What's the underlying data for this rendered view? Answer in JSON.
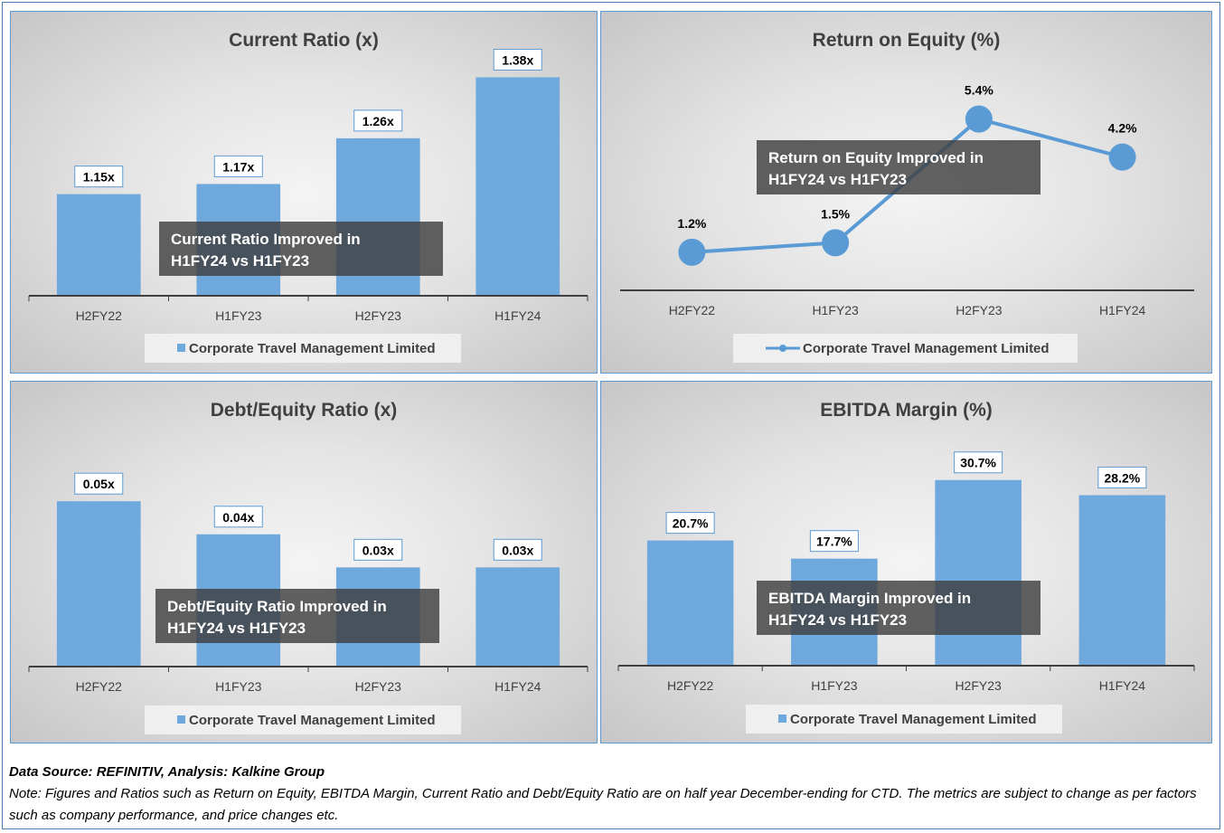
{
  "colors": {
    "bar": "#6fa8dc",
    "line": "#5b9bd5",
    "annotation_bg": "#404040",
    "axis": "#404040"
  },
  "chart_data": [
    {
      "type": "bar",
      "title": "Current Ratio (x)",
      "categories": [
        "H2FY22",
        "H1FY23",
        "H2FY23",
        "H1FY24"
      ],
      "series": [
        {
          "name": "Corporate Travel Management Limited",
          "values": [
            1.15,
            1.17,
            1.26,
            1.38
          ]
        }
      ],
      "data_labels": [
        "1.15x",
        "1.17x",
        "1.26x",
        "1.38x"
      ],
      "ylim": [
        0.95,
        1.42
      ],
      "grid": false,
      "legend": "bottom",
      "annotation": [
        "Current Ratio Improved in",
        "H1FY24 vs H1FY23"
      ]
    },
    {
      "type": "line",
      "title": "Return on Equity (%)",
      "categories": [
        "H2FY22",
        "H1FY23",
        "H2FY23",
        "H1FY24"
      ],
      "series": [
        {
          "name": "Corporate Travel Management Limited",
          "values": [
            1.2,
            1.5,
            5.4,
            4.2
          ]
        }
      ],
      "data_labels": [
        "1.2%",
        "1.5%",
        "5.4%",
        "4.2%"
      ],
      "ylim": [
        0.0,
        6.5
      ],
      "grid": false,
      "legend": "bottom",
      "annotation": [
        "Return on Equity Improved in",
        "H1FY24 vs H1FY23"
      ]
    },
    {
      "type": "bar",
      "title": "Debt/Equity Ratio (x)",
      "categories": [
        "H2FY22",
        "H1FY23",
        "H2FY23",
        "H1FY24"
      ],
      "series": [
        {
          "name": "Corporate Travel Management Limited",
          "values": [
            0.05,
            0.04,
            0.03,
            0.03
          ]
        }
      ],
      "data_labels": [
        "0.05x",
        "0.04x",
        "0.03x",
        "0.03x"
      ],
      "ylim": [
        0.0,
        0.061
      ],
      "grid": false,
      "legend": "bottom",
      "annotation": [
        "Debt/Equity Ratio Improved in",
        "H1FY24 vs H1FY23"
      ]
    },
    {
      "type": "bar",
      "title": "EBITDA Margin (%)",
      "categories": [
        "H2FY22",
        "H1FY23",
        "H2FY23",
        "H1FY24"
      ],
      "series": [
        {
          "name": "Corporate Travel Management Limited",
          "values": [
            20.7,
            17.7,
            30.7,
            28.2
          ]
        }
      ],
      "data_labels": [
        "20.7%",
        "17.7%",
        "30.7%",
        "28.2%"
      ],
      "ylim": [
        0.0,
        35.0
      ],
      "grid": false,
      "legend": "bottom",
      "annotation": [
        "EBITDA Margin Improved in",
        "H1FY24 vs H1FY23"
      ]
    }
  ],
  "footer": {
    "source": "Data Source: REFINITIV, Analysis: Kalkine Group",
    "note": "Note: Figures and Ratios such as Return on Equity, EBITDA Margin, Current Ratio and Debt/Equity Ratio are on half year December-ending for CTD. The metrics are subject to change as per factors such as company performance, and price changes etc."
  }
}
